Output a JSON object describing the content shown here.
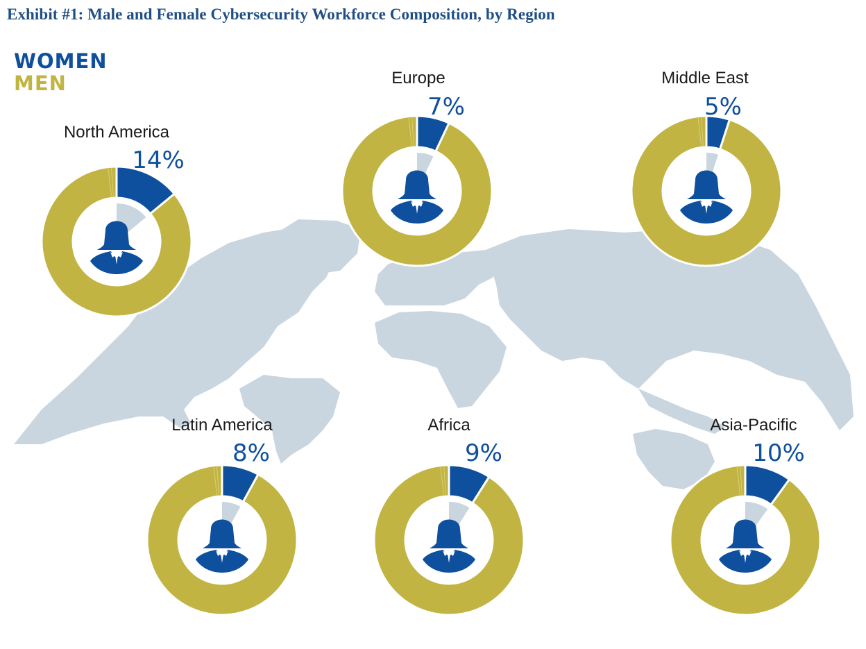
{
  "title": "Exhibit #1: Male and Female Cybersecurity Workforce Composition, by Region",
  "legend": [
    {
      "label": "WOMEN",
      "color": "#0e4f9e"
    },
    {
      "label": "MEN",
      "color": "#c1b443"
    }
  ],
  "colors": {
    "map": "#c9d5df",
    "inner_wedge": "#c9d5df",
    "icon": "#0e4f9e"
  },
  "icon": "woman-silhouette-icon",
  "chart_data": {
    "type": "pie",
    "title": "Exhibit #1: Male and Female Cybersecurity Workforce Composition, by Region",
    "series": [
      {
        "name": "WOMEN"
      },
      {
        "name": "MEN"
      }
    ],
    "regions": [
      {
        "name": "North America",
        "women_pct": 14,
        "label": "14%"
      },
      {
        "name": "Europe",
        "women_pct": 7,
        "label": "7%"
      },
      {
        "name": "Middle East",
        "women_pct": 5,
        "label": "5%"
      },
      {
        "name": "Latin America",
        "women_pct": 8,
        "label": "8%"
      },
      {
        "name": "Africa",
        "women_pct": 9,
        "label": "9%"
      },
      {
        "name": "Asia-Pacific",
        "women_pct": 10,
        "label": "10%"
      }
    ]
  }
}
